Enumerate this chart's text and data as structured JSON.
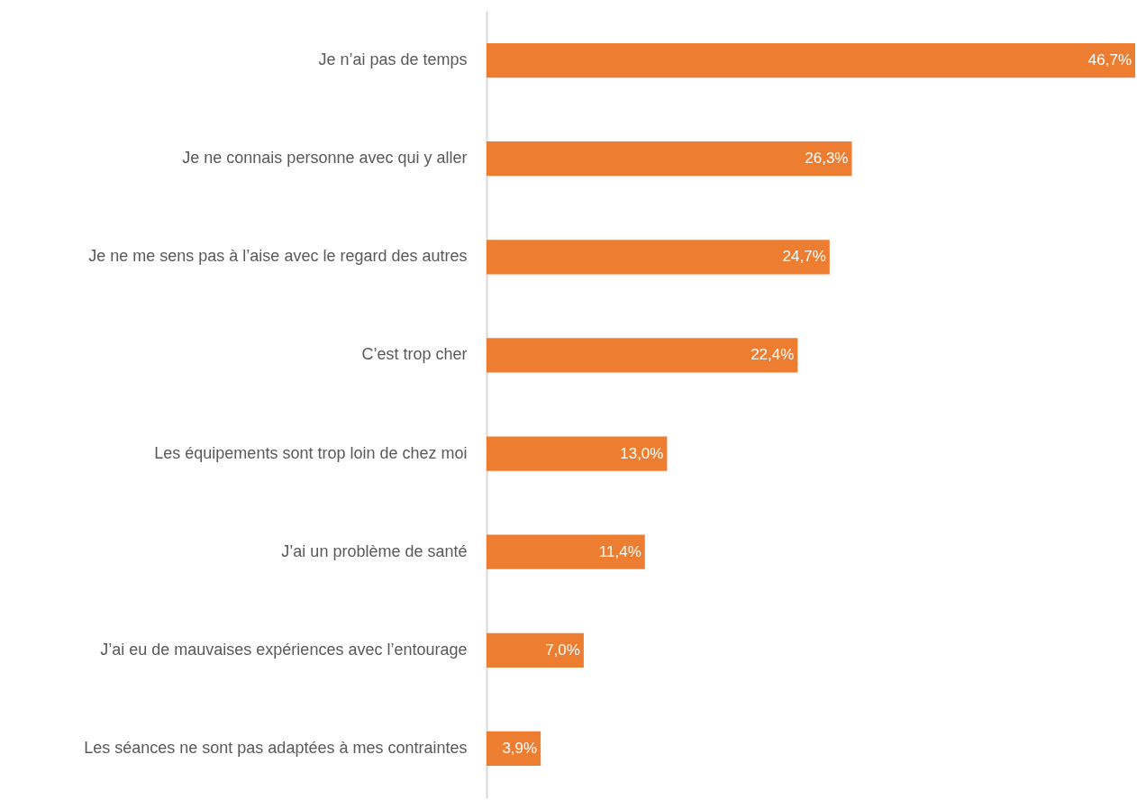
{
  "chart_data": {
    "type": "bar",
    "orientation": "horizontal",
    "categories": [
      "Je n’ai pas de temps",
      "Je ne connais personne avec qui y aller",
      "Je ne me sens pas à l’aise avec le regard des autres",
      "C’est trop cher",
      "Les équipements sont trop loin de chez moi",
      "J’ai un problème de santé",
      "J’ai eu de mauvaises expériences avec l’entourage",
      "Les séances ne sont pas adaptées à mes contraintes"
    ],
    "values": [
      46.7,
      26.3,
      24.7,
      22.4,
      13.0,
      11.4,
      7.0,
      3.9
    ],
    "value_labels": [
      "46,7%",
      "26,3%",
      "24,7%",
      "22,4%",
      "13,0%",
      "11,4%",
      "7,0%",
      "3,9%"
    ],
    "color": "#ed7d31"
  }
}
